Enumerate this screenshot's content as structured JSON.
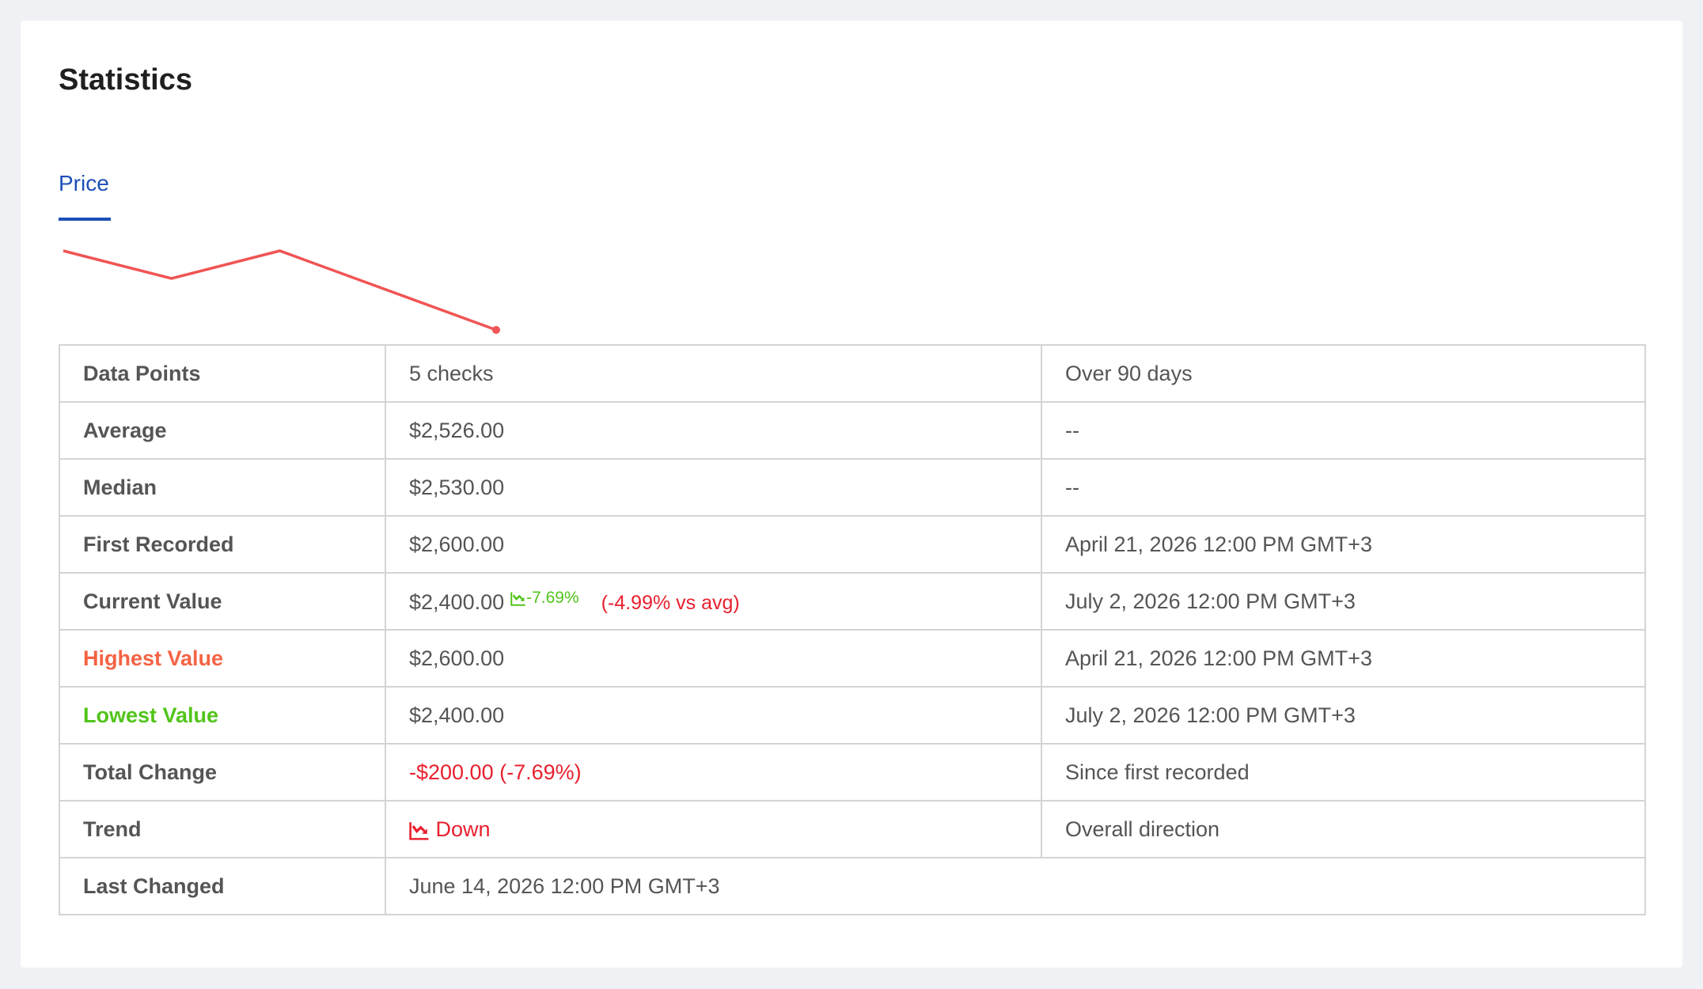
{
  "header": {
    "title": "Statistics"
  },
  "tabs": [
    "Price"
  ],
  "sparkline": {
    "values": [
      2600,
      2530,
      2600,
      2500,
      2400
    ],
    "color": "#f05454"
  },
  "table": {
    "rows": [
      [
        "Data Points",
        "5 checks",
        "Over 90 days"
      ],
      [
        "Average",
        "$2,526.00",
        "--"
      ],
      [
        "Median",
        "$2,530.00",
        "--"
      ],
      [
        "First Recorded",
        "$2,600.00",
        "April 21, 2026 12:00 PM GMT+3"
      ],
      [
        "Current Value",
        "$2,400.00",
        "July 2, 2026 12:00 PM GMT+3"
      ],
      [
        "Highest Value",
        "$2,600.00",
        "April 21, 2026 12:00 PM GMT+3"
      ],
      [
        "Lowest Value",
        "$2,400.00",
        "July 2, 2026 12:00 PM GMT+3"
      ],
      [
        "Total Change",
        "-$200.00 (-7.69%)",
        "Since first recorded"
      ],
      [
        "Trend",
        "Down",
        "Overall direction"
      ],
      [
        "Last Changed",
        "June 14, 2026 12:00 PM GMT+3"
      ]
    ],
    "current_change": "-7.69%",
    "current_vs_avg": "(-4.99% vs avg)"
  }
}
